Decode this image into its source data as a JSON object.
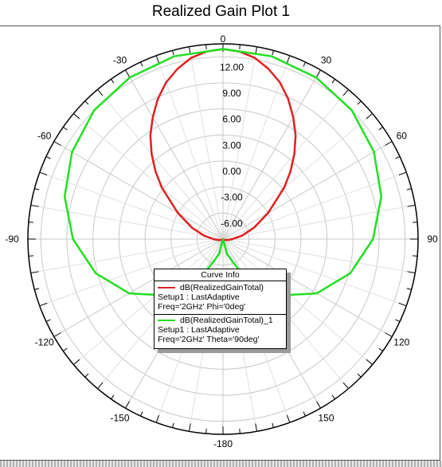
{
  "title": "Realized Gain Plot 1",
  "legend": {
    "title": "Curve Info",
    "entries": [
      {
        "name": "dB(RealizedGainTotal)",
        "setup": "Setup1 : LastAdaptive",
        "freq": "Freq='2GHz' Phi='0deg'",
        "color": "#e02020"
      },
      {
        "name": "dB(RealizedGainTotal)_1",
        "setup": "Setup1 : LastAdaptive",
        "freq": "Freq='2GHz' Theta='90deg'",
        "color": "#20e020"
      }
    ]
  },
  "chart_data": {
    "type": "polar",
    "title": "Realized Gain Plot 1",
    "angle_labels": [
      "0",
      "30",
      "60",
      "90",
      "120",
      "150",
      "-180",
      "-150",
      "-120",
      "-90",
      "-60",
      "-30"
    ],
    "angle_values": [
      0,
      30,
      60,
      90,
      120,
      150,
      180,
      210,
      240,
      270,
      300,
      330
    ],
    "radial_labels": [
      "12.00",
      "9.00",
      "6.00",
      "3.00",
      "0.00",
      "-3.00",
      "-6.00"
    ],
    "radial_values": [
      12,
      9,
      6,
      3,
      0,
      -3,
      -6
    ],
    "r_range": [
      -9,
      13.5
    ],
    "zero_at": "top",
    "direction": "clockwise",
    "grid": true,
    "legend_position": "center-bottom",
    "series": [
      {
        "name": "dB(RealizedGainTotal)",
        "color": "#e02020",
        "theta_deg": [
          0,
          5,
          10,
          15,
          20,
          25,
          30,
          35,
          40,
          45,
          50,
          60,
          70,
          80,
          90,
          100,
          120,
          150,
          180
        ],
        "gain_db": [
          12.9,
          12.7,
          12.2,
          11.3,
          10.2,
          8.8,
          7.2,
          5.6,
          3.8,
          2.0,
          0.2,
          -3.0,
          -5.2,
          -6.8,
          -7.9,
          -8.4,
          -8.8,
          -9.0,
          -9.0
        ]
      },
      {
        "name": "dB(RealizedGainTotal)_1",
        "color": "#20e020",
        "theta_deg": [
          0,
          15,
          30,
          45,
          60,
          75,
          90,
          105,
          120,
          135,
          150,
          165,
          180
        ],
        "gain_db": [
          12.9,
          12.8,
          12.5,
          12.0,
          11.1,
          9.9,
          8.3,
          6.2,
          3.5,
          0.2,
          -3.5,
          -7.2,
          -9.0
        ]
      }
    ]
  }
}
